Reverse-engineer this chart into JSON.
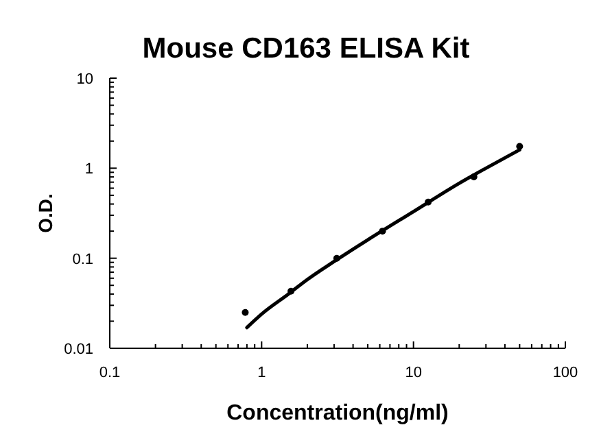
{
  "chart_data": {
    "type": "scatter",
    "title": "Mouse CD163 ELISA Kit",
    "xlabel": "Concentration(ng/ml)",
    "ylabel": "O.D.",
    "log": "xy",
    "grid": false,
    "marker": "circle",
    "xlim": [
      0.1,
      100
    ],
    "ylim": [
      0.01,
      10
    ],
    "xticks": [
      0.1,
      {
        "value": 0.2,
        "label": null
      },
      {
        "value": 0.3,
        "label": null
      },
      {
        "value": 0.4,
        "label": null
      },
      {
        "value": 0.5,
        "label": null
      },
      {
        "value": 0.6,
        "label": null
      },
      {
        "value": 0.7,
        "label": null
      },
      {
        "value": 0.8,
        "label": null
      },
      {
        "value": 0.9,
        "label": null
      },
      1,
      {
        "value": 2,
        "label": null
      },
      {
        "value": 3,
        "label": null
      },
      {
        "value": 4,
        "label": null
      },
      {
        "value": 5,
        "label": null
      },
      {
        "value": 6,
        "label": null
      },
      {
        "value": 7,
        "label": null
      },
      {
        "value": 8,
        "label": null
      },
      {
        "value": 9,
        "label": null
      },
      10,
      {
        "value": 20,
        "label": null
      },
      {
        "value": 30,
        "label": null
      },
      {
        "value": 40,
        "label": null
      },
      {
        "value": 50,
        "label": null
      },
      {
        "value": 60,
        "label": null
      },
      {
        "value": 70,
        "label": null
      },
      {
        "value": 80,
        "label": null
      },
      {
        "value": 90,
        "label": null
      },
      100
    ],
    "yticks": [
      0.01,
      {
        "value": 0.02,
        "label": null
      },
      {
        "value": 0.03,
        "label": null
      },
      {
        "value": 0.04,
        "label": null
      },
      {
        "value": 0.05,
        "label": null
      },
      {
        "value": 0.06,
        "label": null
      },
      {
        "value": 0.07,
        "label": null
      },
      {
        "value": 0.08,
        "label": null
      },
      {
        "value": 0.09,
        "label": null
      },
      0.1,
      {
        "value": 0.2,
        "label": null
      },
      {
        "value": 0.3,
        "label": null
      },
      {
        "value": 0.4,
        "label": null
      },
      {
        "value": 0.5,
        "label": null
      },
      {
        "value": 0.6,
        "label": null
      },
      {
        "value": 0.7,
        "label": null
      },
      {
        "value": 0.8,
        "label": null
      },
      {
        "value": 0.9,
        "label": null
      },
      1,
      {
        "value": 2,
        "label": null
      },
      {
        "value": 3,
        "label": null
      },
      {
        "value": 4,
        "label": null
      },
      {
        "value": 5,
        "label": null
      },
      {
        "value": 6,
        "label": null
      },
      {
        "value": 7,
        "label": null
      },
      {
        "value": 8,
        "label": null
      },
      {
        "value": 9,
        "label": null
      },
      10
    ],
    "series": [
      {
        "color": "#000000",
        "x": [
          0.78,
          1.56,
          3.125,
          6.25,
          12.5,
          25,
          50
        ],
        "values": [
          0.025,
          0.043,
          0.1,
          0.2,
          0.42,
          0.8,
          1.75
        ]
      },
      {
        "type": "line",
        "marker": "none",
        "color": "#000000",
        "x": [
          0.8,
          1,
          1.5,
          2,
          3,
          5,
          10,
          20,
          30,
          50
        ],
        "values": [
          0.017,
          0.024,
          0.04,
          0.058,
          0.092,
          0.16,
          0.33,
          0.68,
          1.0,
          1.6
        ]
      }
    ]
  }
}
